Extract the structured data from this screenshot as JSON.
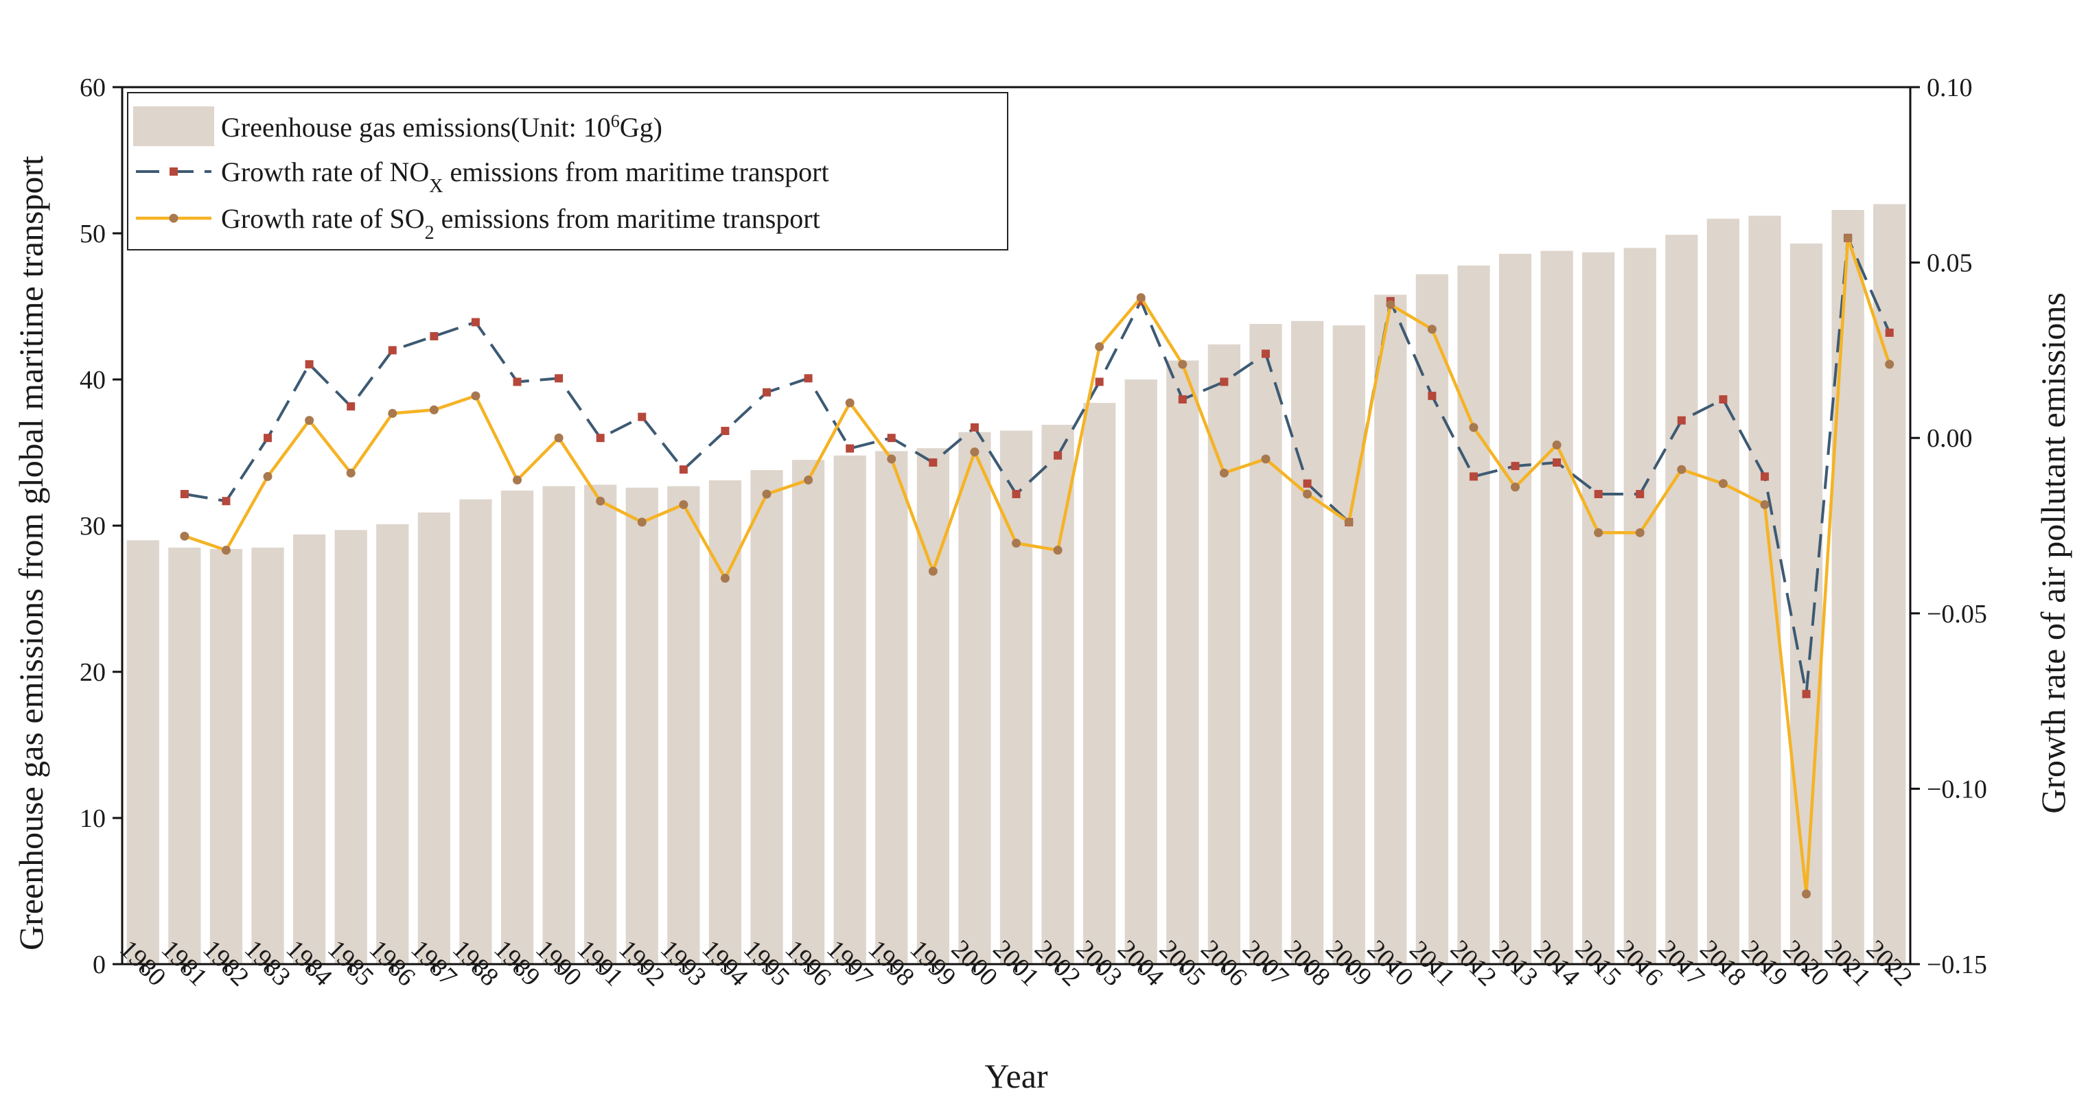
{
  "chart_data": {
    "type": "bar",
    "xlabel": "Year",
    "ylabel_left": "Greenhouse gas emissions from global maritime transport",
    "ylabel_right": "Growth rate of air pollutant emissions",
    "ylim_left": [
      0,
      60
    ],
    "ylim_right": [
      -0.15,
      0.1
    ],
    "yticks_left": [
      "0",
      "10",
      "20",
      "30",
      "40",
      "50",
      "60"
    ],
    "yticks_right": [
      "−0.15",
      "−0.10",
      "−0.05",
      "0.00",
      "0.05",
      "0.10"
    ],
    "grid": false,
    "legend_position": "top-left",
    "categories": [
      "1980",
      "1981",
      "1982",
      "1983",
      "1984",
      "1985",
      "1986",
      "1987",
      "1988",
      "1989",
      "1990",
      "1991",
      "1992",
      "1993",
      "1994",
      "1995",
      "1996",
      "1997",
      "1998",
      "1999",
      "2000",
      "2001",
      "2002",
      "2003",
      "2004",
      "2005",
      "2006",
      "2007",
      "2008",
      "2009",
      "2010",
      "2011",
      "2012",
      "2013",
      "2014",
      "2015",
      "2016",
      "2017",
      "2018",
      "2019",
      "2020",
      "2021",
      "2022"
    ],
    "series": [
      {
        "name": "Greenhouse gas emissions(Unit: 10^6Gg)",
        "legend_main": "Greenhouse gas emissions(Unit: 10",
        "legend_sup": "6",
        "legend_tail": "Gg)",
        "type": "bar",
        "axis": "left",
        "color": "#ded5cc",
        "values": [
          29.0,
          28.5,
          28.4,
          28.5,
          29.4,
          29.7,
          30.1,
          30.9,
          31.8,
          32.4,
          32.7,
          32.8,
          32.6,
          32.7,
          33.1,
          33.8,
          34.5,
          34.8,
          35.1,
          35.3,
          36.4,
          36.5,
          36.9,
          38.4,
          40.0,
          41.3,
          42.4,
          43.8,
          44.0,
          43.7,
          45.8,
          47.2,
          47.8,
          48.6,
          48.8,
          48.7,
          49.0,
          49.9,
          51.0,
          51.2,
          49.3,
          51.6,
          52.0
        ]
      },
      {
        "name": "Growth rate of NOX emissions from maritime transport",
        "legend_pre": "Growth rate of NO",
        "legend_sub": "X",
        "legend_post": " emissions from maritime transport",
        "type": "line",
        "axis": "right",
        "line_color": "#3d5a73",
        "marker_color": "#b5483b",
        "dash": true,
        "values": [
          null,
          -0.016,
          -0.018,
          0.0,
          0.021,
          0.009,
          0.025,
          0.029,
          0.033,
          0.016,
          0.017,
          0.0,
          0.006,
          -0.009,
          0.002,
          0.013,
          0.017,
          -0.003,
          0.0,
          -0.007,
          0.003,
          -0.016,
          -0.005,
          0.016,
          0.039,
          0.011,
          0.016,
          0.024,
          -0.013,
          -0.024,
          0.039,
          0.012,
          -0.011,
          -0.008,
          -0.007,
          -0.016,
          -0.016,
          0.005,
          0.011,
          -0.011,
          -0.073,
          0.057,
          0.03
        ]
      },
      {
        "name": "Growth rate of SO2 emissions from maritime transport",
        "legend_pre": "Growth rate of SO",
        "legend_sub": "2",
        "legend_post": " emissions from maritime transport",
        "type": "line",
        "axis": "right",
        "line_color": "#f5b324",
        "marker_color": "#a8784f",
        "dash": false,
        "values": [
          null,
          -0.028,
          -0.032,
          -0.011,
          0.005,
          -0.01,
          0.007,
          0.008,
          0.012,
          -0.012,
          0.0,
          -0.018,
          -0.024,
          -0.019,
          -0.04,
          -0.016,
          -0.012,
          0.01,
          -0.006,
          -0.038,
          -0.004,
          -0.03,
          -0.032,
          0.026,
          0.04,
          0.021,
          -0.01,
          -0.006,
          -0.016,
          -0.024,
          0.038,
          0.031,
          0.003,
          -0.014,
          -0.002,
          -0.027,
          -0.027,
          -0.009,
          -0.013,
          -0.019,
          -0.13,
          0.057,
          0.021
        ]
      }
    ]
  }
}
